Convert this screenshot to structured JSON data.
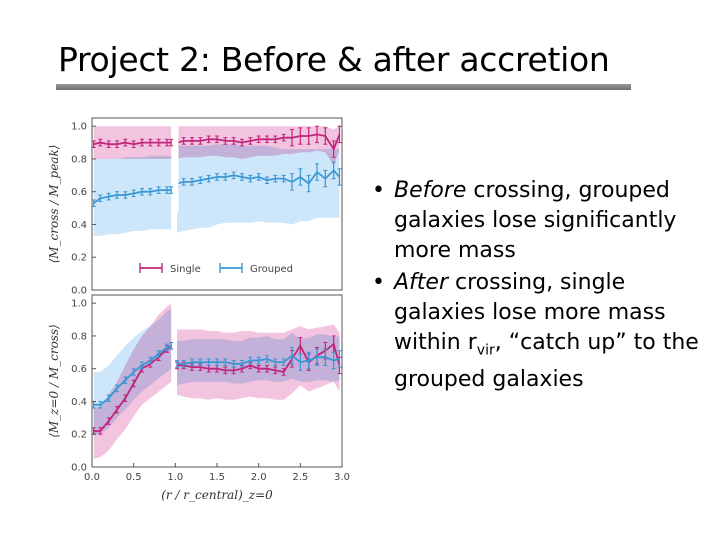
{
  "slide": {
    "title": "Project 2: Before & after accretion",
    "bullets": [
      {
        "em": "Before",
        "rest": " crossing, grouped galaxies lose significantly more mass"
      },
      {
        "em": "After",
        "rest": " crossing, single galaxies lose more mass within r",
        "sub": "vir",
        "rest2": ", “catch up” to the grouped galaxies"
      }
    ]
  },
  "colors": {
    "single": "#c0267a",
    "grouped": "#3a98d4",
    "single_band": "#eeb0d4",
    "grouped_band": "#b9dcf6"
  },
  "chart_data": [
    {
      "type": "line",
      "ylabel": "⟨M_cross / M_peak⟩",
      "xlim": [
        0,
        3
      ],
      "ylim": [
        0,
        1.05
      ],
      "yticks": [
        "0.0",
        "0.2",
        "0.4",
        "0.6",
        "0.8",
        "1.0"
      ],
      "grid": false,
      "legend": {
        "position": "lower-center",
        "entries": [
          "Single",
          "Grouped"
        ]
      },
      "series": [
        {
          "name": "Single",
          "x": [
            0.02,
            0.1,
            0.2,
            0.3,
            0.4,
            0.5,
            0.6,
            0.7,
            0.8,
            0.9,
            0.95,
            1.02,
            1.1,
            1.2,
            1.3,
            1.4,
            1.5,
            1.6,
            1.7,
            1.8,
            1.9,
            2.0,
            2.1,
            2.2,
            2.3,
            2.4,
            2.5,
            2.6,
            2.7,
            2.8,
            2.9,
            2.97
          ],
          "y": [
            0.89,
            0.9,
            0.89,
            0.89,
            0.9,
            0.89,
            0.9,
            0.9,
            0.9,
            0.9,
            0.9,
            0.9,
            0.91,
            0.91,
            0.91,
            0.92,
            0.92,
            0.91,
            0.91,
            0.9,
            0.91,
            0.92,
            0.92,
            0.92,
            0.93,
            0.93,
            0.94,
            0.94,
            0.95,
            0.94,
            0.86,
            0.95
          ],
          "band_lo": [
            0.8,
            0.8,
            0.8,
            0.8,
            0.8,
            0.8,
            0.8,
            0.8,
            0.8,
            0.8,
            0.8,
            0.8,
            0.81,
            0.81,
            0.81,
            0.82,
            0.82,
            0.81,
            0.81,
            0.8,
            0.81,
            0.82,
            0.82,
            0.82,
            0.83,
            0.83,
            0.84,
            0.84,
            0.85,
            0.84,
            0.76,
            0.85
          ],
          "band_hi": [
            1.0,
            1.0,
            1.0,
            1.0,
            1.0,
            1.0,
            1.0,
            1.0,
            1.0,
            1.0,
            1.0,
            1.0,
            1.0,
            1.0,
            1.0,
            1.0,
            1.0,
            1.0,
            1.0,
            1.0,
            1.0,
            1.0,
            1.0,
            1.0,
            1.0,
            1.0,
            1.0,
            1.0,
            1.0,
            1.0,
            0.98,
            1.0
          ]
        },
        {
          "name": "Grouped",
          "x": [
            0.02,
            0.1,
            0.2,
            0.3,
            0.4,
            0.5,
            0.6,
            0.7,
            0.8,
            0.9,
            0.95,
            1.02,
            1.1,
            1.2,
            1.3,
            1.4,
            1.5,
            1.6,
            1.7,
            1.8,
            1.9,
            2.0,
            2.1,
            2.2,
            2.3,
            2.4,
            2.5,
            2.6,
            2.7,
            2.8,
            2.9,
            2.97
          ],
          "y": [
            0.53,
            0.56,
            0.57,
            0.58,
            0.58,
            0.59,
            0.6,
            0.6,
            0.61,
            0.61,
            0.61,
            0.65,
            0.66,
            0.66,
            0.67,
            0.68,
            0.69,
            0.69,
            0.7,
            0.69,
            0.68,
            0.69,
            0.67,
            0.68,
            0.68,
            0.66,
            0.69,
            0.65,
            0.72,
            0.68,
            0.73,
            0.69
          ],
          "band_lo": [
            0.33,
            0.33,
            0.34,
            0.34,
            0.35,
            0.36,
            0.36,
            0.37,
            0.37,
            0.37,
            0.37,
            0.35,
            0.36,
            0.37,
            0.38,
            0.38,
            0.4,
            0.41,
            0.41,
            0.41,
            0.41,
            0.42,
            0.41,
            0.41,
            0.41,
            0.4,
            0.42,
            0.42,
            0.44,
            0.44,
            0.44,
            0.44
          ],
          "band_hi": [
            0.8,
            0.8,
            0.8,
            0.8,
            0.81,
            0.81,
            0.81,
            0.82,
            0.82,
            0.82,
            0.82,
            0.88,
            0.88,
            0.88,
            0.88,
            0.88,
            0.89,
            0.89,
            0.89,
            0.88,
            0.88,
            0.88,
            0.88,
            0.87,
            0.86,
            0.86,
            0.86,
            0.86,
            0.86,
            0.86,
            0.86,
            0.86
          ]
        }
      ]
    },
    {
      "type": "line",
      "ylabel": "⟨M_z=0 / M_cross⟩",
      "xlabel": "(r / r_central)_z=0",
      "xlim": [
        0,
        3
      ],
      "ylim": [
        0,
        1.05
      ],
      "xticks": [
        "0.0",
        "0.5",
        "1.0",
        "1.5",
        "2.0",
        "2.5",
        "3.0"
      ],
      "yticks": [
        "0.0",
        "0.2",
        "0.4",
        "0.6",
        "0.8",
        "1.0"
      ],
      "grid": false,
      "series": [
        {
          "name": "Single",
          "x": [
            0.02,
            0.1,
            0.2,
            0.3,
            0.4,
            0.5,
            0.6,
            0.7,
            0.8,
            0.9,
            0.95,
            1.02,
            1.1,
            1.2,
            1.3,
            1.4,
            1.5,
            1.6,
            1.7,
            1.8,
            1.9,
            2.0,
            2.1,
            2.2,
            2.3,
            2.4,
            2.5,
            2.6,
            2.7,
            2.8,
            2.9,
            2.97
          ],
          "y": [
            0.22,
            0.22,
            0.28,
            0.35,
            0.42,
            0.51,
            0.6,
            0.63,
            0.67,
            0.72,
            0.74,
            0.62,
            0.62,
            0.61,
            0.61,
            0.6,
            0.6,
            0.59,
            0.59,
            0.6,
            0.62,
            0.6,
            0.6,
            0.59,
            0.58,
            0.66,
            0.74,
            0.64,
            0.68,
            0.71,
            0.75,
            0.62
          ],
          "band_lo": [
            0.05,
            0.06,
            0.1,
            0.17,
            0.23,
            0.31,
            0.38,
            0.42,
            0.46,
            0.5,
            0.52,
            0.44,
            0.43,
            0.42,
            0.42,
            0.41,
            0.42,
            0.41,
            0.41,
            0.42,
            0.43,
            0.42,
            0.42,
            0.41,
            0.41,
            0.45,
            0.5,
            0.46,
            0.48,
            0.5,
            0.52,
            0.46
          ],
          "band_hi": [
            0.36,
            0.37,
            0.44,
            0.52,
            0.62,
            0.72,
            0.8,
            0.86,
            0.93,
            0.98,
            1.0,
            0.84,
            0.84,
            0.84,
            0.84,
            0.83,
            0.83,
            0.82,
            0.82,
            0.83,
            0.83,
            0.82,
            0.82,
            0.82,
            0.82,
            0.84,
            0.86,
            0.84,
            0.85,
            0.86,
            0.87,
            0.82
          ]
        },
        {
          "name": "Grouped",
          "x": [
            0.02,
            0.1,
            0.2,
            0.3,
            0.4,
            0.5,
            0.6,
            0.7,
            0.8,
            0.9,
            0.95,
            1.02,
            1.1,
            1.2,
            1.3,
            1.4,
            1.5,
            1.6,
            1.7,
            1.8,
            1.9,
            2.0,
            2.1,
            2.2,
            2.3,
            2.4,
            2.5,
            2.6,
            2.7,
            2.8,
            2.9,
            2.97
          ],
          "y": [
            0.38,
            0.38,
            0.42,
            0.48,
            0.53,
            0.58,
            0.62,
            0.65,
            0.69,
            0.73,
            0.74,
            0.63,
            0.63,
            0.64,
            0.64,
            0.64,
            0.64,
            0.64,
            0.63,
            0.63,
            0.65,
            0.65,
            0.66,
            0.64,
            0.64,
            0.68,
            0.64,
            0.65,
            0.67,
            0.67,
            0.65,
            0.66
          ],
          "band_lo": [
            0.2,
            0.2,
            0.24,
            0.3,
            0.35,
            0.41,
            0.46,
            0.5,
            0.54,
            0.58,
            0.6,
            0.5,
            0.51,
            0.52,
            0.52,
            0.52,
            0.52,
            0.52,
            0.51,
            0.51,
            0.52,
            0.53,
            0.53,
            0.52,
            0.52,
            0.54,
            0.52,
            0.52,
            0.53,
            0.53,
            0.52,
            0.53
          ],
          "band_hi": [
            0.58,
            0.58,
            0.62,
            0.68,
            0.74,
            0.79,
            0.83,
            0.86,
            0.9,
            0.95,
            0.97,
            0.77,
            0.77,
            0.78,
            0.78,
            0.78,
            0.78,
            0.78,
            0.77,
            0.77,
            0.79,
            0.79,
            0.8,
            0.78,
            0.78,
            0.82,
            0.78,
            0.79,
            0.81,
            0.81,
            0.79,
            0.8
          ]
        }
      ]
    }
  ]
}
